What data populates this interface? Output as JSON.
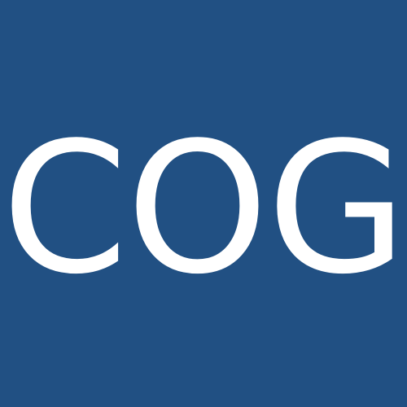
{
  "tile": {
    "text": "COG",
    "background_color": "#215083",
    "text_color": "#FFFFFF"
  }
}
